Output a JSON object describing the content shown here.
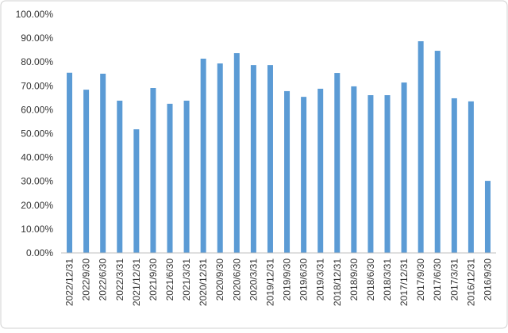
{
  "chart_data": {
    "type": "bar",
    "categories": [
      "2022/12/31",
      "2022/9/30",
      "2022/6/30",
      "2022/3/31",
      "2021/12/31",
      "2021/9/30",
      "2021/6/30",
      "2021/3/31",
      "2020/12/31",
      "2020/9/30",
      "2020/6/30",
      "2020/3/31",
      "2019/12/31",
      "2019/9/30",
      "2019/6/30",
      "2019/3/31",
      "2018/12/31",
      "2018/9/30",
      "2018/6/30",
      "2018/3/31",
      "2017/12/31",
      "2017/9/30",
      "2017/6/30",
      "2017/3/31",
      "2016/12/31",
      "2016/9/30"
    ],
    "values": [
      75.5,
      68.4,
      75.1,
      63.8,
      51.8,
      69.1,
      62.5,
      63.8,
      81.4,
      79.4,
      83.7,
      78.7,
      78.7,
      67.8,
      65.4,
      68.8,
      75.4,
      69.8,
      66.1,
      66.1,
      71.4,
      88.7,
      84.7,
      64.8,
      63.5,
      30.2
    ],
    "color": "#5b9bd5",
    "ylim": [
      0,
      100
    ],
    "yticks": [
      {
        "value": 0,
        "label": "0.00%"
      },
      {
        "value": 10,
        "label": "10.00%"
      },
      {
        "value": 20,
        "label": "20.00%"
      },
      {
        "value": 30,
        "label": "30.00%"
      },
      {
        "value": 40,
        "label": "40.00%"
      },
      {
        "value": 50,
        "label": "50.00%"
      },
      {
        "value": 60,
        "label": "60.00%"
      },
      {
        "value": 70,
        "label": "70.00%"
      },
      {
        "value": 80,
        "label": "80.00%"
      },
      {
        "value": 90,
        "label": "90.00%"
      },
      {
        "value": 100,
        "label": "100.00%"
      }
    ],
    "grid": false
  }
}
